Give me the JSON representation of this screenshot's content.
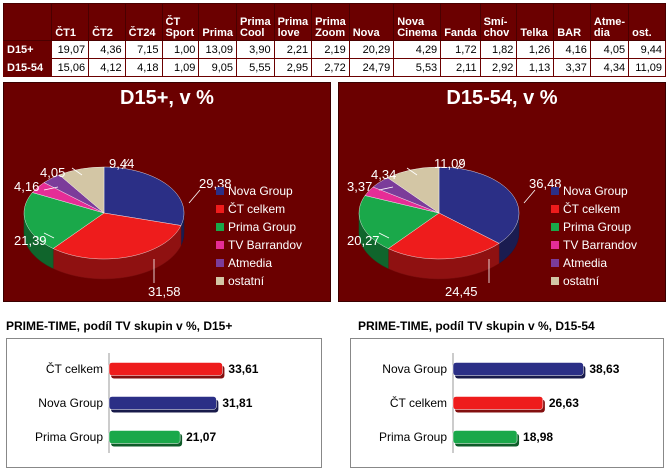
{
  "table": {
    "columns": [
      "",
      "ČT1",
      "ČT2",
      "ČT24",
      "ČT\nSport",
      "Prima",
      "Prima\nCool",
      "Prima\nlove",
      "Prima\nZoom",
      "Nova",
      "Nova\nCinema",
      "Fanda",
      "Smí-\nchov",
      "Telka",
      "BAR",
      "Atme-\ndia",
      "ost."
    ],
    "rows": [
      {
        "label": "D15+",
        "values": [
          "19,07",
          "4,36",
          "7,15",
          "1,00",
          "13,09",
          "3,90",
          "2,21",
          "2,19",
          "20,29",
          "4,29",
          "1,72",
          "1,82",
          "1,26",
          "4,16",
          "4,05",
          "9,44"
        ]
      },
      {
        "label": "D15-54",
        "values": [
          "15,06",
          "4,12",
          "4,18",
          "1,09",
          "9,05",
          "5,55",
          "2,95",
          "2,72",
          "24,79",
          "5,53",
          "2,11",
          "2,92",
          "1,13",
          "3,37",
          "4,34",
          "11,09"
        ]
      }
    ]
  },
  "chart_data": [
    {
      "type": "pie",
      "title": "D15+, v %",
      "categories": [
        "Nova Group",
        "ČT celkem",
        "Prima Group",
        "TV Barrandov",
        "Atmedia",
        "ostatní"
      ],
      "values": [
        29.38,
        31.58,
        21.39,
        4.16,
        4.05,
        9.44
      ],
      "labels": [
        "29,38",
        "31,58",
        "21,39",
        "4,16",
        "4,05",
        "9,44"
      ],
      "colors": [
        "#2b2f86",
        "#ee1c1c",
        "#1aa84a",
        "#e52d96",
        "#7b3c9a",
        "#d3c6a5"
      ],
      "legend": "right"
    },
    {
      "type": "pie",
      "title": "D15-54, v %",
      "categories": [
        "Nova Group",
        "ČT celkem",
        "Prima Group",
        "TV Barrandov",
        "Atmedia",
        "ostatní"
      ],
      "values": [
        36.48,
        24.45,
        20.27,
        3.37,
        4.34,
        11.09
      ],
      "labels": [
        "36,48",
        "24,45",
        "20,27",
        "3,37",
        "4,34",
        "11,09"
      ],
      "colors": [
        "#2b2f86",
        "#ee1c1c",
        "#1aa84a",
        "#e52d96",
        "#7b3c9a",
        "#d3c6a5"
      ],
      "legend": "right"
    },
    {
      "type": "bar",
      "orientation": "horizontal",
      "title": "PRIME-TIME, podíl TV skupin v %, D15+",
      "categories": [
        "ČT celkem",
        "Nova Group",
        "Prima Group"
      ],
      "values": [
        33.61,
        31.81,
        21.07
      ],
      "labels": [
        "33,61",
        "31,81",
        "21,07"
      ],
      "colors": [
        "#ee1c1c",
        "#2b2f86",
        "#1aa84a"
      ],
      "xlim": [
        0,
        40
      ]
    },
    {
      "type": "bar",
      "orientation": "horizontal",
      "title": "PRIME-TIME, podíl TV skupin v %, D15-54",
      "categories": [
        "Nova Group",
        "ČT celkem",
        "Prima Group"
      ],
      "values": [
        38.63,
        26.63,
        18.98
      ],
      "labels": [
        "38,63",
        "26,63",
        "18,98"
      ],
      "colors": [
        "#2b2f86",
        "#ee1c1c",
        "#1aa84a"
      ],
      "xlim": [
        0,
        40
      ]
    }
  ]
}
